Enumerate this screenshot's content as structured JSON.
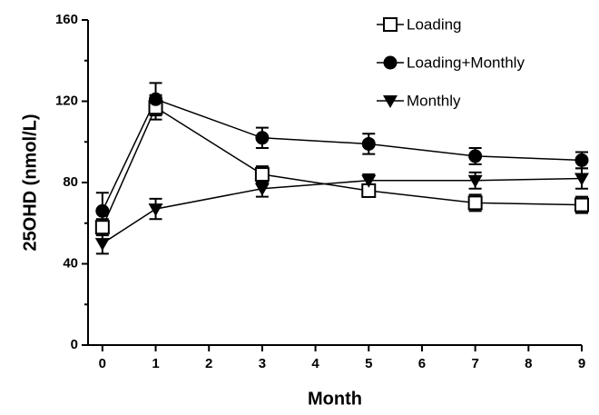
{
  "chart_data": {
    "type": "line",
    "x_label": "Month",
    "y_label": "25OHD (nmol/L)",
    "x": [
      0,
      1,
      3,
      5,
      7,
      9
    ],
    "series": [
      {
        "name": "Loading",
        "color": "#000000",
        "marker": "open-square",
        "values": [
          58,
          117,
          84,
          76,
          70,
          69
        ],
        "errors": [
          4,
          6,
          4,
          3,
          4,
          4
        ]
      },
      {
        "name": "Loading+Monthly",
        "color": "#000000",
        "marker": "filled-circle",
        "values": [
          66,
          121,
          102,
          99,
          93,
          91
        ],
        "errors": [
          9,
          8,
          5,
          5,
          4,
          4
        ]
      },
      {
        "name": "Monthly",
        "color": "#000000",
        "marker": "filled-triangle-down",
        "values": [
          50,
          67,
          77,
          81,
          81,
          82
        ],
        "errors": [
          5,
          5,
          4,
          3,
          4,
          5
        ]
      }
    ],
    "xlim": [
      -0.27,
      9
    ],
    "xticks": [
      0,
      1,
      2,
      3,
      4,
      5,
      6,
      7,
      8,
      9
    ],
    "ylim": [
      0,
      160
    ],
    "yticks": [
      0,
      40,
      80,
      120,
      160
    ],
    "yminor_ticks": [
      20,
      60,
      100,
      140
    ],
    "grid": false,
    "legend": "upper right"
  }
}
